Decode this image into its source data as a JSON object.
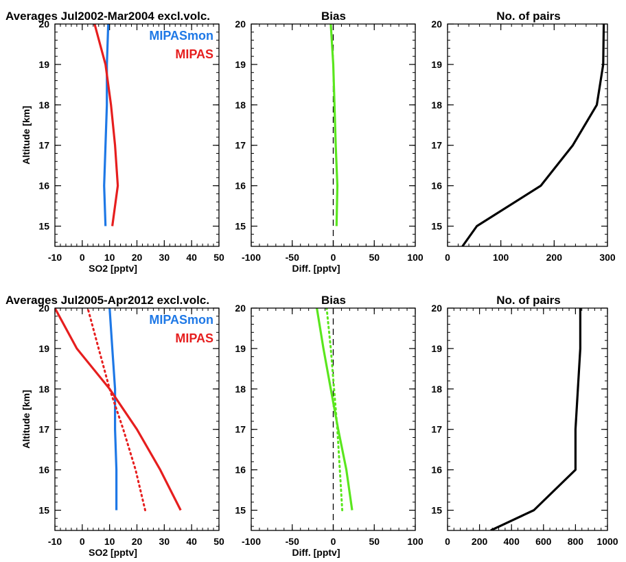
{
  "chart_data": [
    {
      "type": "line",
      "title": "Averages Jul2002-Mar2004 excl.volc.",
      "xlabel": "SO2 [pptv]",
      "ylabel": "Altitude [km]",
      "xlim": [
        -10,
        50
      ],
      "ylim": [
        14.5,
        20
      ],
      "xticks": [
        "-10",
        "0",
        "10",
        "20",
        "30",
        "40",
        "50"
      ],
      "yticks": [
        "15",
        "16",
        "17",
        "18",
        "19",
        "20"
      ],
      "legend": [
        "MIPASmon",
        "MIPAS"
      ],
      "legend_position": "top-right",
      "series": [
        {
          "name": "MIPASmon",
          "color": "#1e78e6",
          "style": "solid",
          "x": [
            8.5,
            8,
            8.5,
            9,
            9,
            9.5
          ],
          "y": [
            15,
            16,
            17,
            18,
            19,
            20
          ]
        },
        {
          "name": "MIPAS",
          "color": "#e61e1e",
          "style": "solid",
          "x": [
            11,
            13,
            12,
            10.5,
            8.5,
            4.5
          ],
          "y": [
            15,
            16,
            17,
            18,
            19,
            20
          ]
        }
      ]
    },
    {
      "type": "line",
      "title": "Bias",
      "xlabel": "Diff. [pptv]",
      "xlim": [
        -100,
        100
      ],
      "ylim": [
        14.5,
        20
      ],
      "xticks": [
        "-100",
        "-50",
        "0",
        "50",
        "100"
      ],
      "yticks": [
        "15",
        "16",
        "17",
        "18",
        "19",
        "20"
      ],
      "reference_line": {
        "x": 0,
        "style": "dashed",
        "color": "#000000"
      },
      "series": [
        {
          "color": "#5ae61e",
          "style": "solid",
          "x": [
            4,
            5,
            3,
            1.5,
            0,
            -3
          ],
          "y": [
            15,
            16,
            17,
            18,
            19,
            20
          ]
        }
      ]
    },
    {
      "type": "line",
      "title": "No. of pairs",
      "xlim": [
        0,
        300
      ],
      "ylim": [
        14.5,
        20
      ],
      "xticks": [
        "0",
        "100",
        "200",
        "300"
      ],
      "yticks": [
        "15",
        "16",
        "17",
        "18",
        "19",
        "20"
      ],
      "series": [
        {
          "color": "#000000",
          "style": "solid",
          "x": [
            28,
            55,
            175,
            235,
            280,
            292,
            293
          ],
          "y": [
            14.5,
            15,
            16,
            17,
            18,
            19,
            20
          ]
        }
      ]
    },
    {
      "type": "line",
      "title": "Averages Jul2005-Apr2012 excl.volc.",
      "xlabel": "SO2 [pptv]",
      "ylabel": "Altitude [km]",
      "xlim": [
        -10,
        50
      ],
      "ylim": [
        14.5,
        20
      ],
      "xticks": [
        "-10",
        "0",
        "10",
        "20",
        "30",
        "40",
        "50"
      ],
      "yticks": [
        "15",
        "16",
        "17",
        "18",
        "19",
        "20"
      ],
      "legend": [
        "MIPASmon",
        "MIPAS"
      ],
      "legend_position": "top-right",
      "series": [
        {
          "name": "MIPASmon",
          "color": "#1e78e6",
          "style": "solid",
          "x": [
            12.5,
            12.5,
            12,
            12,
            11,
            10
          ],
          "y": [
            15,
            16,
            17,
            18,
            19,
            20
          ]
        },
        {
          "name": "MIPAS",
          "color": "#e61e1e",
          "style": "solid",
          "x": [
            36,
            28.5,
            20,
            10,
            -2,
            -10
          ],
          "y": [
            15,
            16,
            17,
            18,
            19,
            20
          ]
        },
        {
          "name": "MIPAS",
          "color": "#e61e1e",
          "style": "dotted",
          "x": [
            23,
            19.5,
            15,
            10,
            6,
            2
          ],
          "y": [
            15,
            16,
            17,
            18,
            19,
            20
          ]
        }
      ]
    },
    {
      "type": "line",
      "title": "Bias",
      "xlabel": "Diff. [pptv]",
      "xlim": [
        -100,
        100
      ],
      "ylim": [
        14.5,
        20
      ],
      "xticks": [
        "-100",
        "-50",
        "0",
        "50",
        "100"
      ],
      "yticks": [
        "15",
        "16",
        "17",
        "18",
        "19",
        "20"
      ],
      "reference_line": {
        "x": 0,
        "style": "dashed",
        "color": "#000000"
      },
      "series": [
        {
          "color": "#5ae61e",
          "style": "solid",
          "x": [
            23,
            16,
            6,
            -3,
            -12,
            -20
          ],
          "y": [
            15,
            16,
            17,
            18,
            19,
            20
          ]
        },
        {
          "color": "#5ae61e",
          "style": "dotted",
          "x": [
            11,
            8,
            5,
            1,
            -3,
            -8
          ],
          "y": [
            15,
            16,
            17,
            18,
            19,
            20
          ]
        }
      ]
    },
    {
      "type": "line",
      "title": "No. of pairs",
      "xlim": [
        0,
        1000
      ],
      "ylim": [
        14.5,
        20
      ],
      "xticks": [
        "0",
        "200",
        "400",
        "600",
        "800",
        "1000"
      ],
      "yticks": [
        "15",
        "16",
        "17",
        "18",
        "19",
        "20"
      ],
      "series": [
        {
          "color": "#000000",
          "style": "solid",
          "x": [
            270,
            540,
            800,
            800,
            815,
            830,
            830
          ],
          "y": [
            14.5,
            15,
            16,
            17,
            18,
            19,
            20
          ]
        }
      ]
    }
  ]
}
